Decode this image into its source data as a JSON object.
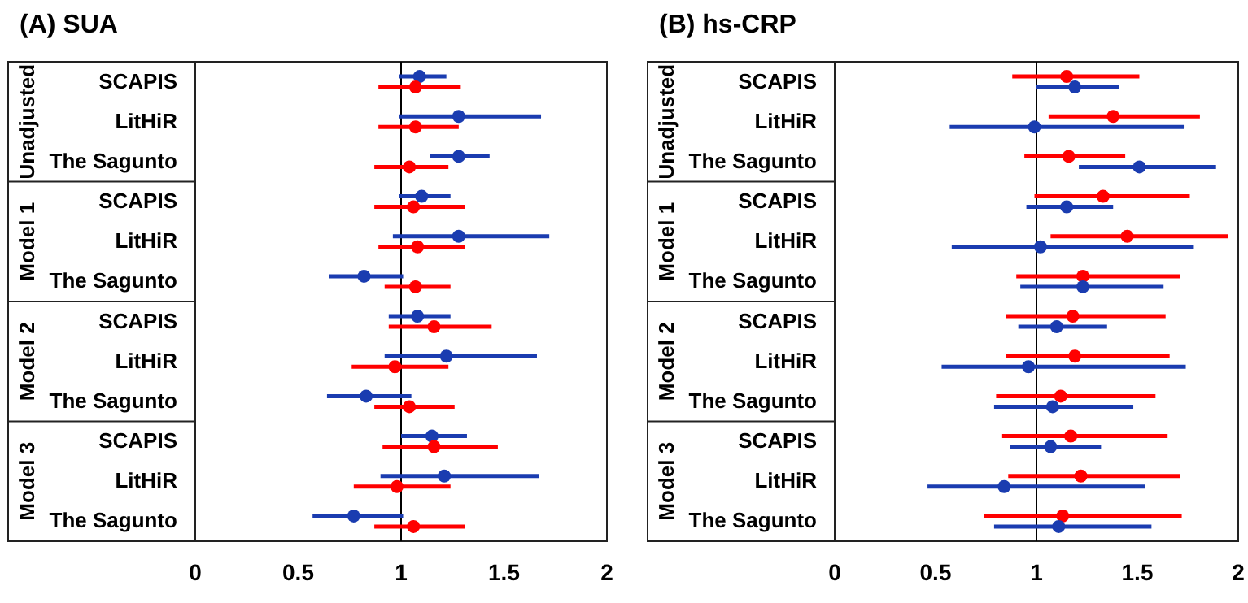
{
  "chart_data": [
    {
      "type": "scatter",
      "orientation": "horizontal",
      "title": "(A) SUA",
      "categories": [
        "SCAPIS",
        "LitHiR",
        "The Sagunto",
        "SCAPIS",
        "LitHiR",
        "The Sagunto",
        "SCAPIS",
        "LitHiR",
        "The Sagunto",
        "SCAPIS",
        "LitHiR",
        "The Sagunto"
      ],
      "annotations": [
        "Unadjusted",
        "Model 1",
        "Model 2",
        "Model 3"
      ],
      "xlim": [
        0,
        2
      ],
      "xticks": [
        0,
        0.5,
        1,
        1.5,
        2
      ],
      "ref_lines": [
        {
          "axis": "x",
          "value": 1,
          "color": "#000000"
        }
      ],
      "marker": "circle",
      "grid": false,
      "series": [
        {
          "color": "#1a3cb0",
          "values": [
            1.09,
            1.28,
            1.28,
            1.1,
            1.28,
            0.82,
            1.08,
            1.22,
            0.83,
            1.15,
            1.21,
            0.77
          ],
          "errors": [
            [
              0.99,
              1.22
            ],
            [
              0.99,
              1.68
            ],
            [
              1.14,
              1.43
            ],
            [
              0.99,
              1.24
            ],
            [
              0.96,
              1.72
            ],
            [
              0.65,
              1.01
            ],
            [
              0.94,
              1.24
            ],
            [
              0.92,
              1.66
            ],
            [
              0.64,
              1.05
            ],
            [
              1.0,
              1.32
            ],
            [
              0.9,
              1.67
            ],
            [
              0.57,
              1.01
            ]
          ]
        },
        {
          "color": "#ff0000",
          "values": [
            1.07,
            1.07,
            1.04,
            1.06,
            1.08,
            1.07,
            1.16,
            0.97,
            1.04,
            1.16,
            0.98,
            1.06
          ],
          "errors": [
            [
              0.89,
              1.29
            ],
            [
              0.89,
              1.28
            ],
            [
              0.87,
              1.23
            ],
            [
              0.87,
              1.31
            ],
            [
              0.89,
              1.31
            ],
            [
              0.92,
              1.24
            ],
            [
              0.94,
              1.44
            ],
            [
              0.76,
              1.23
            ],
            [
              0.87,
              1.26
            ],
            [
              0.91,
              1.47
            ],
            [
              0.77,
              1.24
            ],
            [
              0.87,
              1.31
            ]
          ]
        }
      ]
    },
    {
      "type": "scatter",
      "orientation": "horizontal",
      "title": "(B) hs-CRP",
      "categories": [
        "SCAPIS",
        "LitHiR",
        "The Sagunto",
        "SCAPIS",
        "LitHiR",
        "The Sagunto",
        "SCAPIS",
        "LitHiR",
        "The Sagunto",
        "SCAPIS",
        "LitHiR",
        "The Sagunto"
      ],
      "annotations": [
        "Unadjusted",
        "Model 1",
        "Model 2",
        "Model 3"
      ],
      "xlim": [
        0,
        2
      ],
      "xticks": [
        0,
        0.5,
        1,
        1.5,
        2
      ],
      "ref_lines": [
        {
          "axis": "x",
          "value": 1,
          "color": "#000000"
        }
      ],
      "marker": "circle",
      "grid": false,
      "series": [
        {
          "color": "#ff0000",
          "values": [
            1.15,
            1.38,
            1.16,
            1.33,
            1.45,
            1.23,
            1.18,
            1.19,
            1.12,
            1.17,
            1.22,
            1.13
          ],
          "errors": [
            [
              0.88,
              1.51
            ],
            [
              1.06,
              1.81
            ],
            [
              0.94,
              1.44
            ],
            [
              0.99,
              1.76
            ],
            [
              1.07,
              1.95
            ],
            [
              0.9,
              1.71
            ],
            [
              0.85,
              1.64
            ],
            [
              0.85,
              1.66
            ],
            [
              0.8,
              1.59
            ],
            [
              0.83,
              1.65
            ],
            [
              0.86,
              1.71
            ],
            [
              0.74,
              1.72
            ]
          ]
        },
        {
          "color": "#1a3cb0",
          "values": [
            1.19,
            0.99,
            1.51,
            1.15,
            1.02,
            1.23,
            1.1,
            0.96,
            1.08,
            1.07,
            0.84,
            1.11
          ],
          "errors": [
            [
              1.0,
              1.41
            ],
            [
              0.57,
              1.73
            ],
            [
              1.21,
              1.89
            ],
            [
              0.95,
              1.38
            ],
            [
              0.58,
              1.78
            ],
            [
              0.92,
              1.63
            ],
            [
              0.91,
              1.35
            ],
            [
              0.53,
              1.74
            ],
            [
              0.79,
              1.48
            ],
            [
              0.87,
              1.32
            ],
            [
              0.46,
              1.54
            ],
            [
              0.79,
              1.57
            ]
          ]
        }
      ]
    }
  ]
}
